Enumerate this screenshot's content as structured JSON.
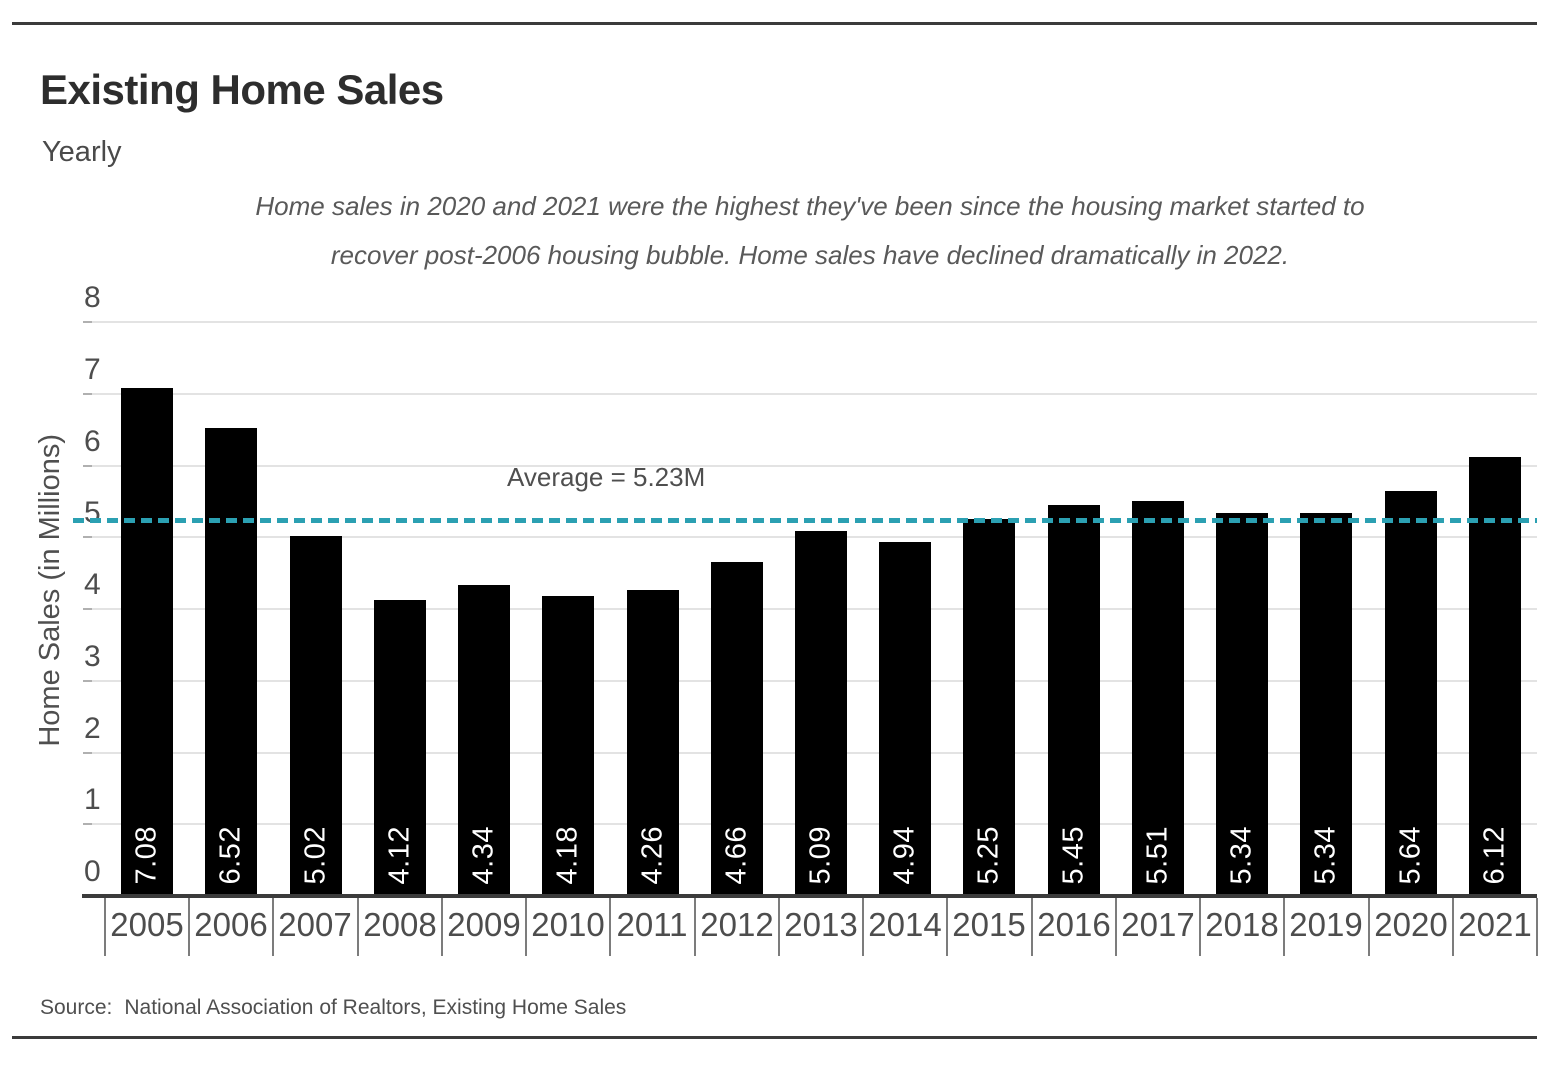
{
  "header": {
    "title": "Existing Home Sales",
    "subtitle": "Yearly"
  },
  "annotation": {
    "line1": "Home sales in 2020 and 2021 were the highest they've been since the housing market started to",
    "line2": "recover post-2006 housing bubble. Home sales have declined dramatically in 2022."
  },
  "source": {
    "label": "Source:",
    "text": "National Association of Realtors, Existing Home Sales"
  },
  "colors": {
    "bar": "#000000",
    "average_line": "#2ba0b2",
    "gridline": "#e3e3e3",
    "axis_line": "#3b3b3b",
    "text_primary": "#2d2d2d",
    "text_secondary": "#4f4f4f",
    "value_label": "#ffffff"
  },
  "chart_data": {
    "type": "bar",
    "title": "Existing Home Sales",
    "subtitle": "Yearly",
    "categories": [
      "2005",
      "2006",
      "2007",
      "2008",
      "2009",
      "2010",
      "2011",
      "2012",
      "2013",
      "2014",
      "2015",
      "2016",
      "2017",
      "2018",
      "2019",
      "2020",
      "2021"
    ],
    "values": [
      7.08,
      6.52,
      5.02,
      4.12,
      4.34,
      4.18,
      4.26,
      4.66,
      5.09,
      4.94,
      5.25,
      5.45,
      5.51,
      5.34,
      5.34,
      5.64,
      6.12
    ],
    "value_labels": [
      "7.08",
      "6.52",
      "5.02",
      "4.12",
      "4.34",
      "4.18",
      "4.26",
      "4.66",
      "5.09",
      "4.94",
      "5.25",
      "5.45",
      "5.51",
      "5.34",
      "5.34",
      "5.64",
      "6.12"
    ],
    "xlabel": "",
    "ylabel": "Home Sales (in Millions)",
    "ylim": [
      0,
      8
    ],
    "yticks": [
      0,
      1,
      2,
      3,
      4,
      5,
      6,
      7,
      8
    ],
    "grid": true,
    "legend": "none",
    "bar_color": "#000000",
    "average_line": {
      "value": 5.23,
      "label": "Average = 5.23M",
      "style": "dashed",
      "color": "#2ba0b2"
    },
    "annotation": "Home sales in 2020 and 2021 were the highest they've been since the housing market started to recover post-2006 housing bubble. Home sales have declined dramatically in 2022.",
    "source": "National Association of Realtors, Existing Home Sales"
  }
}
